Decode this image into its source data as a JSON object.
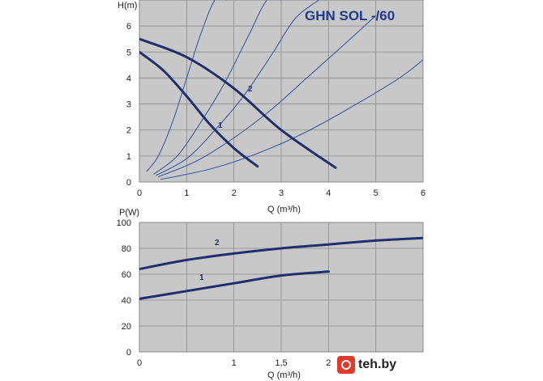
{
  "chart_data": [
    {
      "type": "line",
      "title": "GHN SOL -/60",
      "xlabel": "Q (m³/h)",
      "ylabel": "H(m)",
      "xlim": [
        0,
        6
      ],
      "ylim": [
        0,
        7
      ],
      "x_ticks": [
        "0",
        "1",
        "2",
        "3",
        "4",
        "5",
        "6"
      ],
      "y_ticks": [
        "0",
        "1",
        "2",
        "3",
        "4",
        "5",
        "6"
      ],
      "grid": true,
      "series": [
        {
          "name": "1",
          "x": [
            0,
            0.5,
            1.0,
            1.5,
            2.0,
            2.5
          ],
          "y": [
            5.0,
            4.3,
            3.3,
            2.2,
            1.3,
            0.6
          ]
        },
        {
          "name": "2",
          "x": [
            0,
            1.0,
            2.0,
            3.0,
            4.15
          ],
          "y": [
            5.5,
            4.8,
            3.6,
            2.0,
            0.55
          ]
        }
      ],
      "system_curves": [
        {
          "x": [
            0.15,
            0.4,
            0.7,
            1.0,
            1.3,
            1.6,
            1.85
          ],
          "y": [
            0.4,
            1.0,
            2.3,
            4.0,
            5.7,
            7.0,
            7.0
          ]
        },
        {
          "x": [
            0.3,
            0.8,
            1.3,
            1.8,
            2.3,
            2.7,
            3.0
          ],
          "y": [
            0.3,
            1.0,
            2.3,
            3.8,
            5.6,
            7.0,
            7.0
          ]
        },
        {
          "x": [
            0.35,
            1.0,
            1.6,
            2.2,
            2.8,
            3.3,
            3.8
          ],
          "y": [
            0.25,
            0.9,
            2.0,
            3.3,
            4.9,
            6.3,
            7.0
          ]
        },
        {
          "x": [
            0.4,
            1.2,
            2.0,
            2.8,
            3.6,
            4.4,
            5.0
          ],
          "y": [
            0.2,
            0.8,
            1.7,
            2.8,
            4.1,
            5.4,
            6.4
          ]
        },
        {
          "x": [
            0.45,
            1.5,
            2.5,
            3.5,
            4.5,
            5.5,
            6.0
          ],
          "y": [
            0.1,
            0.5,
            1.1,
            1.9,
            2.9,
            4.0,
            4.7
          ]
        }
      ]
    },
    {
      "type": "line",
      "title": "",
      "xlabel": "Q (m³/h)",
      "ylabel": "P(W)",
      "xlim": [
        0,
        3
      ],
      "ylim": [
        0,
        100
      ],
      "x_ticks": [
        "0",
        "1",
        "1,5",
        "2"
      ],
      "y_ticks": [
        "0",
        "20",
        "40",
        "60",
        "80",
        "100"
      ],
      "grid": true,
      "series": [
        {
          "name": "1",
          "x": [
            0,
            0.5,
            1.0,
            1.5,
            2.0
          ],
          "y": [
            41,
            47,
            53,
            59,
            62
          ]
        },
        {
          "name": "2",
          "x": [
            0,
            0.5,
            1.0,
            1.5,
            2.0,
            2.5,
            3.0
          ],
          "y": [
            64,
            71,
            76,
            80,
            83,
            86,
            88
          ]
        }
      ]
    }
  ],
  "watermark": {
    "text": "teh.by",
    "color": "#e23a2a"
  },
  "colors": {
    "curve": "#1f2f6e",
    "system": "#3b5aa8",
    "plot_bg": "#c8c8c8",
    "grid": "#8a8a8a"
  }
}
